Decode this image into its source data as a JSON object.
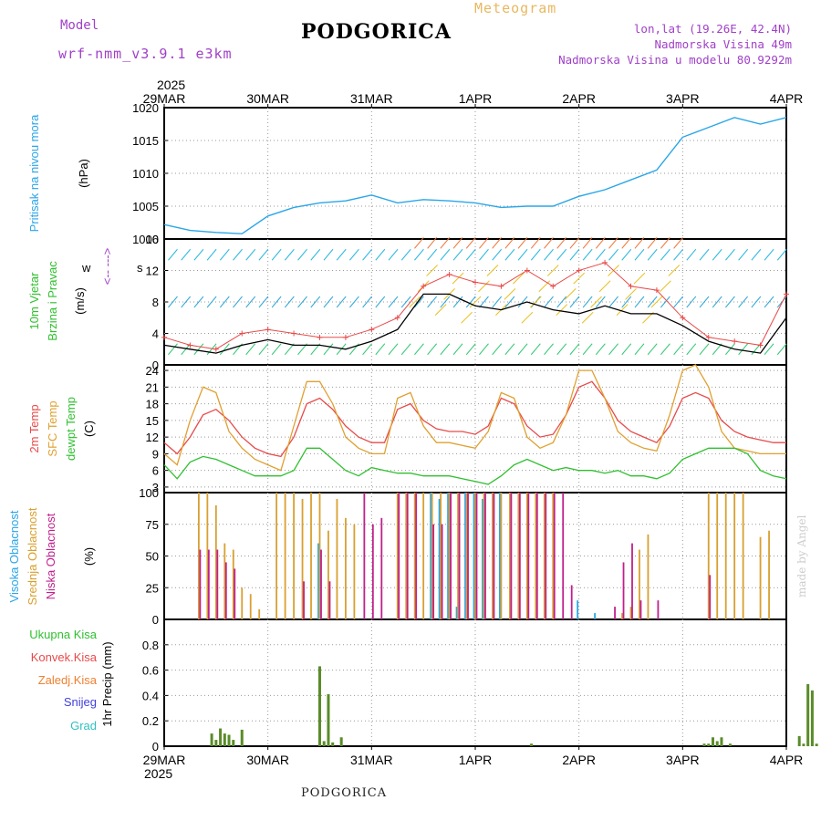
{
  "header": {
    "model_label": "Model",
    "model_version": "wrf-nmm_v3.9.1  e3km",
    "title": "PODGORICA",
    "meteogram_label": "Meteogram",
    "coords": "lon,lat (19.26E, 42.4N)",
    "elevation": "Nadmorska Visina 49m",
    "model_elevation": "Nadmorska Visina u modelu 80.9292m"
  },
  "footer": {
    "station": "PODGORICA",
    "credit": "made by Angel"
  },
  "time_axis": {
    "year": "2025",
    "dates": [
      "29MAR",
      "30MAR",
      "31MAR",
      "1APR",
      "2APR",
      "3APR",
      "4APR"
    ]
  },
  "colors": {
    "pressure": "#2aa6e8",
    "temp2m": "#e84a4a",
    "sfc": "#e0a030",
    "dew": "#30c030",
    "high": "#2aa6e8",
    "mid": "#d8a030",
    "low": "#c0208c",
    "precip": "#5a8c2a",
    "wind_line": "#000000"
  },
  "chart_data": [
    {
      "type": "line",
      "panel": "pressure",
      "ylabel_main": "Pritisak na nivou mora",
      "ylabel_unit": "(hPa)",
      "ylim": [
        1000,
        1020
      ],
      "yticks": [
        "1000",
        "1005",
        "1010",
        "1015",
        "1020"
      ],
      "x_hours": [
        0,
        6,
        12,
        18,
        24,
        30,
        36,
        42,
        48,
        54,
        60,
        66,
        72,
        78,
        84,
        90,
        96,
        102,
        108,
        114,
        120,
        126,
        132,
        138,
        144
      ],
      "series": [
        {
          "name": "Pressure",
          "values": [
            1002.2,
            1001.3,
            1001.0,
            1000.8,
            1003.5,
            1004.8,
            1005.5,
            1005.8,
            1006.7,
            1005.5,
            1006.0,
            1005.8,
            1005.5,
            1004.8,
            1005.0,
            1005.0,
            1006.5,
            1007.5,
            1009.0,
            1010.5,
            1015.5,
            1017.0,
            1018.5,
            1017.5,
            1018.5
          ]
        }
      ]
    },
    {
      "type": "line",
      "panel": "wind",
      "ylabel_main": "10m Vjetar",
      "ylabel_sub": "Brzina i Pravac",
      "ylabel_unit": "(m/s)",
      "legend_marks": [
        "w",
        "<-- --->",
        "s"
      ],
      "ylim": [
        0,
        16
      ],
      "yticks": [
        "0",
        "4",
        "8",
        "12",
        "16"
      ],
      "x_hours": [
        0,
        6,
        12,
        18,
        24,
        30,
        36,
        42,
        48,
        54,
        60,
        66,
        72,
        78,
        84,
        90,
        96,
        102,
        108,
        114,
        120,
        126,
        132,
        138,
        144
      ],
      "series": [
        {
          "name": "Wind speed",
          "values": [
            2.5,
            2.0,
            1.5,
            2.5,
            3.2,
            2.5,
            2.5,
            2.0,
            3.0,
            4.5,
            9.0,
            9.0,
            7.5,
            7.0,
            8.0,
            7.0,
            6.5,
            7.5,
            6.5,
            6.5,
            5.0,
            3.0,
            2.0,
            1.5,
            6.0
          ]
        },
        {
          "name": "Gust",
          "values": [
            3.5,
            2.5,
            2.0,
            4.0,
            4.5,
            4.0,
            3.5,
            3.5,
            4.5,
            6.0,
            10.0,
            11.5,
            10.5,
            10.0,
            12.0,
            10.0,
            12.0,
            13.0,
            10.0,
            9.5,
            6.0,
            3.5,
            3.0,
            2.5,
            9.0
          ]
        }
      ]
    },
    {
      "type": "line",
      "panel": "temperature",
      "ylabel_main": "2m Temp",
      "ylabel_sub": "SFC Temp",
      "ylabel_sub2": "dewpt Temp",
      "ylabel_unit": "(C)",
      "ylim": [
        2,
        25
      ],
      "yticks": [
        "3",
        "6",
        "9",
        "12",
        "15",
        "18",
        "21",
        "24"
      ],
      "x_hours": [
        0,
        3,
        6,
        9,
        12,
        15,
        18,
        21,
        24,
        27,
        30,
        33,
        36,
        39,
        42,
        45,
        48,
        51,
        54,
        57,
        60,
        63,
        66,
        69,
        72,
        75,
        78,
        81,
        84,
        87,
        90,
        93,
        96,
        99,
        102,
        105,
        108,
        111,
        114,
        117,
        120,
        123,
        126,
        129,
        132,
        135,
        138,
        141,
        144
      ],
      "series": [
        {
          "name": "2m Temp",
          "values": [
            11,
            9,
            12,
            16,
            17,
            15,
            12,
            10,
            9,
            8.5,
            12,
            18,
            19,
            17,
            14,
            12,
            11,
            11,
            17,
            18,
            15,
            13.5,
            13,
            13,
            12.5,
            14,
            19,
            18,
            14,
            12,
            12.5,
            16,
            21,
            22,
            19,
            15,
            13,
            12,
            11,
            14,
            19,
            20,
            19,
            15,
            13,
            12,
            11.5,
            11,
            11
          ]
        },
        {
          "name": "SFC Temp",
          "values": [
            9,
            7,
            15,
            21,
            20,
            13,
            10,
            8,
            7,
            6,
            14,
            22,
            22,
            18,
            12,
            10,
            9,
            9,
            19,
            20,
            14,
            11,
            11,
            10.5,
            10,
            13,
            20,
            19,
            12,
            10,
            11,
            16,
            24,
            24,
            19,
            13,
            11,
            10,
            9.5,
            16,
            24,
            25,
            21,
            13,
            10,
            9.5,
            9,
            9,
            9
          ]
        },
        {
          "name": "dewpt Temp",
          "values": [
            7,
            4.5,
            7.5,
            8.5,
            8,
            7,
            6,
            5,
            5,
            5,
            6,
            10,
            10,
            8,
            6,
            5,
            6.5,
            6,
            5.5,
            5.5,
            5,
            5,
            5,
            4.5,
            4,
            3.5,
            5,
            7,
            8,
            7,
            6,
            6.5,
            6,
            6,
            5.5,
            6,
            5,
            5,
            4.5,
            5.5,
            8,
            9,
            10,
            10,
            10,
            9,
            6,
            5,
            4.5
          ]
        }
      ]
    },
    {
      "type": "bar",
      "panel": "clouds",
      "ylabel_main": "Visoka Oblacnost",
      "ylabel_sub": "Srednja Oblacnost",
      "ylabel_sub2": "Niska Oblacnost",
      "ylabel_unit": "(%)",
      "ylim": [
        0,
        100
      ],
      "yticks": [
        "0",
        "25",
        "50",
        "75",
        "100"
      ],
      "x_hours": [
        8,
        10,
        12,
        14,
        16,
        18,
        20,
        22,
        26,
        28,
        30,
        32,
        34,
        36,
        38,
        40,
        42,
        44,
        46,
        48,
        50,
        52,
        54,
        56,
        58,
        60,
        62,
        64,
        66,
        68,
        70,
        72,
        74,
        76,
        78,
        80,
        82,
        84,
        86,
        88,
        90,
        92,
        94,
        96,
        100,
        104,
        106,
        108,
        110,
        112,
        114,
        116,
        118,
        120,
        122,
        124,
        126,
        128,
        130,
        132,
        134,
        138,
        140
      ],
      "series": [
        {
          "name": "Visoka Oblacnost",
          "values": [
            0,
            0,
            0,
            0,
            0,
            0,
            0,
            0,
            0,
            0,
            0,
            0,
            0,
            60,
            0,
            0,
            0,
            0,
            0,
            0,
            0,
            0,
            0,
            0,
            0,
            0,
            100,
            95,
            100,
            10,
            100,
            100,
            95,
            0,
            100,
            0,
            0,
            0,
            0,
            0,
            0,
            0,
            0,
            15,
            5,
            0,
            0,
            0,
            0,
            0,
            0,
            0,
            0,
            0,
            0,
            0,
            0,
            0,
            0,
            0,
            0,
            0,
            0
          ]
        },
        {
          "name": "Srednja Oblacnost",
          "values": [
            100,
            100,
            90,
            60,
            55,
            25,
            20,
            8,
            100,
            100,
            100,
            95,
            100,
            100,
            70,
            95,
            80,
            75,
            0,
            0,
            0,
            0,
            100,
            100,
            100,
            100,
            100,
            100,
            100,
            100,
            100,
            100,
            100,
            100,
            100,
            100,
            100,
            100,
            100,
            100,
            100,
            0,
            0,
            0,
            0,
            0,
            5,
            10,
            55,
            67,
            0,
            0,
            0,
            0,
            0,
            0,
            100,
            100,
            100,
            100,
            100,
            65,
            70
          ]
        },
        {
          "name": "Niska Oblacnost",
          "values": [
            55,
            55,
            55,
            45,
            40,
            0,
            0,
            0,
            0,
            0,
            0,
            30,
            0,
            55,
            30,
            0,
            0,
            0,
            100,
            75,
            80,
            0,
            100,
            100,
            100,
            0,
            75,
            75,
            100,
            100,
            100,
            100,
            100,
            100,
            0,
            100,
            100,
            100,
            100,
            100,
            100,
            100,
            27,
            0,
            0,
            10,
            45,
            60,
            15,
            0,
            15,
            0,
            0,
            0,
            0,
            0,
            35,
            0,
            0,
            0,
            0,
            0,
            0
          ]
        }
      ]
    },
    {
      "type": "bar",
      "panel": "precip",
      "legend": [
        "Ukupna  Kisa",
        "Konvek.Kisa",
        "Zaledj.Kisa",
        "Snijeg",
        "Grad"
      ],
      "legend_colors": [
        "#30c030",
        "#e84a4a",
        "#f08030",
        "#4040e0",
        "#30c0c0"
      ],
      "ylabel_unit": "1hr Precip (mm)",
      "ylim": [
        0,
        1.0
      ],
      "yticks": [
        "0",
        "0.2",
        "0.4",
        "0.6",
        "0.8"
      ],
      "x_hours": [
        11,
        12,
        13,
        14,
        15,
        16,
        18,
        36,
        37,
        38,
        39,
        41,
        85,
        125,
        126,
        127,
        128,
        129,
        131,
        147,
        148,
        149,
        150,
        151
      ],
      "values": [
        0.1,
        0.05,
        0.14,
        0.1,
        0.09,
        0.05,
        0.13,
        0.63,
        0.04,
        0.41,
        0.03,
        0.07,
        0.02,
        0.02,
        0.02,
        0.07,
        0.04,
        0.07,
        0.02,
        0.08,
        0.02,
        0.49,
        0.44,
        0.02
      ]
    }
  ]
}
